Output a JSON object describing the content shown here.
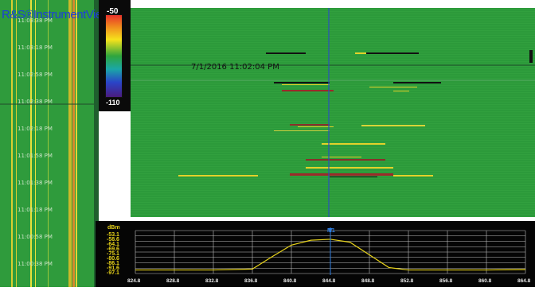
{
  "app": {
    "title": "R&S®InstrumentView"
  },
  "left_panel": {
    "time_labels": [
      "11:03:38 PM",
      "11:03:18 PM",
      "11:02:58 PM",
      "11:02:38 PM",
      "11:02:18 PM",
      "11:01:58 PM",
      "11:01:38 PM",
      "11:01:18 PM",
      "11:00:58 PM",
      "11:00:38 PM"
    ]
  },
  "colorbar": {
    "max": "-50",
    "min": "-110"
  },
  "waterfall": {
    "timestamp": "7/1/2016 11:02:04 PM"
  },
  "spectrum": {
    "unit": "dBm",
    "y_ticks": [
      "-53.1",
      "-58.6",
      "-64.1",
      "-69.6",
      "-75.1",
      "-80.6",
      "-86.1",
      "-91.6",
      "-97.1"
    ],
    "x_ticks": [
      "824.8",
      "828.8",
      "832.8",
      "836.8",
      "840.8",
      "844.8",
      "848.8",
      "852.8",
      "856.8",
      "860.8",
      "864.8"
    ],
    "marker": "M1",
    "trace_color": "#e8d31a"
  },
  "chart_data": {
    "type": "line",
    "x": [
      824.8,
      828.8,
      832.8,
      836.8,
      838.8,
      840.8,
      842.8,
      844.8,
      846.8,
      848.8,
      850.8,
      852.8,
      856.8,
      860.8,
      864.8
    ],
    "series": [
      {
        "values": [
          -93.5,
          -93.5,
          -93.5,
          -92.5,
          -80,
          -68,
          -63,
          -62,
          -65,
          -78,
          -91,
          -93.5,
          -93.5,
          -93.5,
          -93
        ]
      }
    ],
    "ylim": [
      -97.1,
      -53.1
    ],
    "xlim": [
      824.8,
      864.8
    ],
    "grid": true
  }
}
